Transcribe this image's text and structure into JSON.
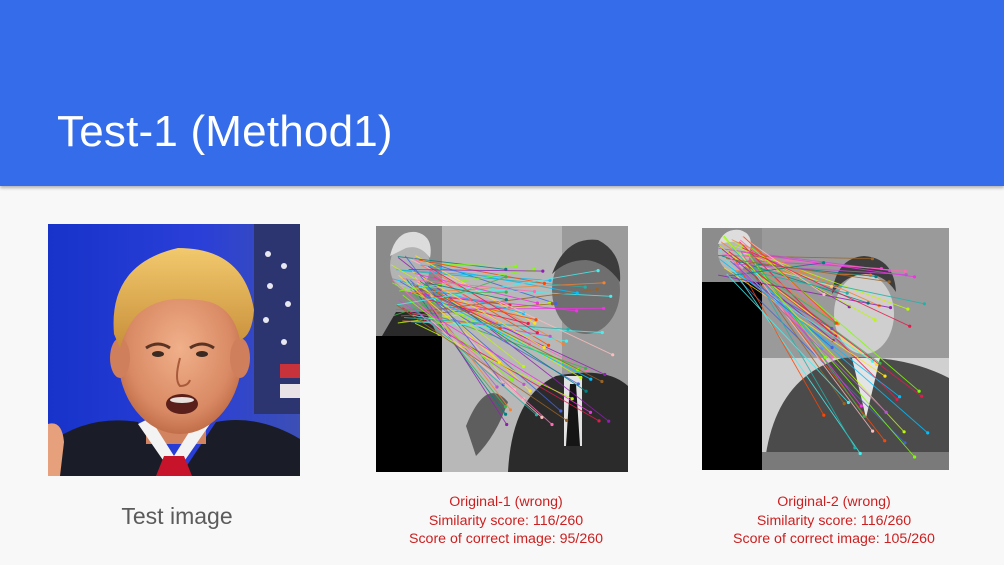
{
  "slide": {
    "title": "Test-1 (Method1)",
    "accent_color": "#356cea",
    "caption_color": "#cc1f1f"
  },
  "test_panel": {
    "caption": "Test image",
    "image": "test-face-photo"
  },
  "matches": [
    {
      "image": "feature-match-visualization",
      "label": "Original-1 (wrong)",
      "similarity": "Similarity score: 116/260",
      "correct": "Score of correct image: 95/260"
    },
    {
      "image": "feature-match-visualization",
      "label": "Original-2 (wrong)",
      "similarity": "Similarity score: 116/260",
      "correct": "Score of correct image: 105/260"
    }
  ]
}
